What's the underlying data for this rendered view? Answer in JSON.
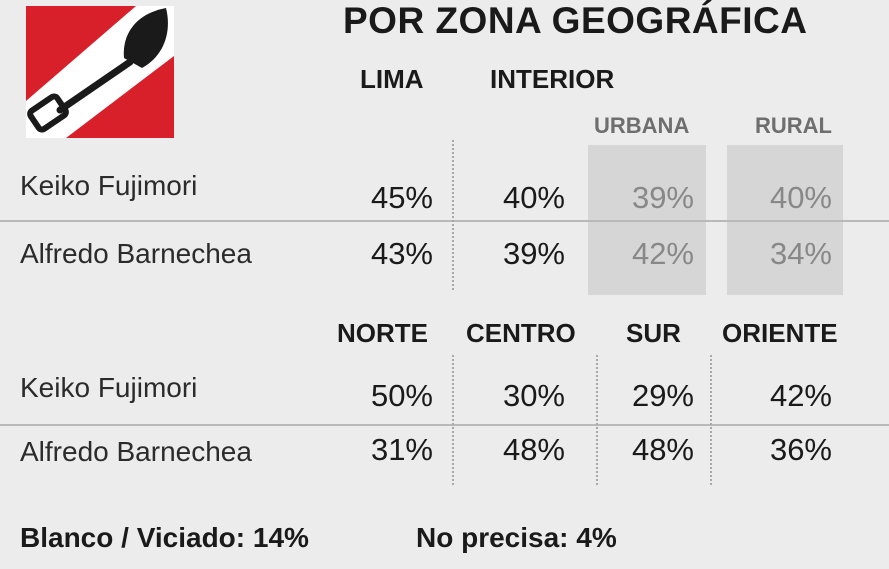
{
  "title": "POR ZONA GEOGRÁFICA",
  "colors": {
    "logo_red": "#d8202a",
    "shade": "#d6d6d6",
    "text": "#1a1a1a",
    "muted": "#888888"
  },
  "table1": {
    "headers": [
      "LIMA",
      "INTERIOR"
    ],
    "subheaders": [
      "URBANA",
      "RURAL"
    ],
    "rows": [
      {
        "name": "Keiko Fujimori",
        "values": [
          "45%",
          "40%",
          "39%",
          "40%"
        ]
      },
      {
        "name": "Alfredo Barnechea",
        "values": [
          "43%",
          "39%",
          "42%",
          "34%"
        ]
      }
    ]
  },
  "table2": {
    "headers": [
      "NORTE",
      "CENTRO",
      "SUR",
      "ORIENTE"
    ],
    "rows": [
      {
        "name": "Keiko Fujimori",
        "values": [
          "50%",
          "30%",
          "29%",
          "42%"
        ]
      },
      {
        "name": "Alfredo Barnechea",
        "values": [
          "31%",
          "48%",
          "48%",
          "36%"
        ]
      }
    ]
  },
  "footer": {
    "blanco_label": "Blanco / Viciado:",
    "blanco_value": "14%",
    "noprecisa_label": "No precisa:",
    "noprecisa_value": "4%"
  },
  "chart_data": [
    {
      "type": "table",
      "title": "POR ZONA GEOGRÁFICA",
      "columns": [
        "LIMA",
        "INTERIOR",
        "URBANA",
        "RURAL"
      ],
      "series": [
        {
          "name": "Keiko Fujimori",
          "values": [
            45,
            40,
            39,
            40
          ]
        },
        {
          "name": "Alfredo Barnechea",
          "values": [
            43,
            39,
            42,
            34
          ]
        }
      ]
    },
    {
      "type": "table",
      "columns": [
        "NORTE",
        "CENTRO",
        "SUR",
        "ORIENTE"
      ],
      "series": [
        {
          "name": "Keiko Fujimori",
          "values": [
            50,
            30,
            29,
            42
          ]
        },
        {
          "name": "Alfredo Barnechea",
          "values": [
            31,
            48,
            48,
            36
          ]
        }
      ]
    }
  ]
}
